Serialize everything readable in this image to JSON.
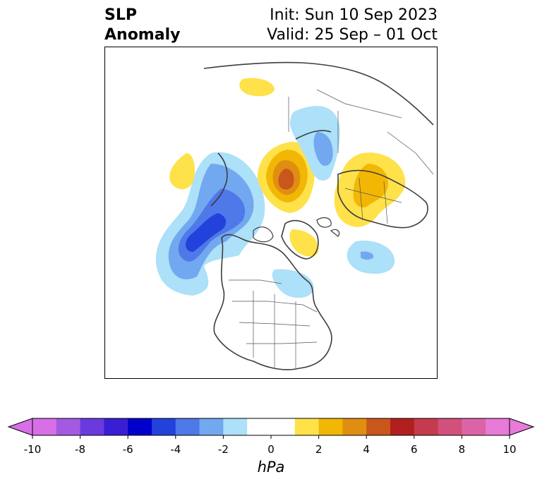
{
  "title": {
    "left_line1": "SLP",
    "left_line2": "Anomaly",
    "right_line1": "Init: Sun 10 Sep 2023",
    "right_line2": "Valid: 25 Sep – 01 Oct"
  },
  "colorbar": {
    "unit": "hPa",
    "min": -10,
    "max": 10,
    "ticks": [
      "-10",
      "-8",
      "-6",
      "-4",
      "-2",
      "0",
      "2",
      "4",
      "6",
      "8",
      "10"
    ],
    "under_color": "#d86fe6",
    "over_color": "#e87ad8",
    "bins": [
      {
        "lo": -10,
        "hi": -9,
        "color": "#d86fe6"
      },
      {
        "lo": -9,
        "hi": -8,
        "color": "#a35ae0"
      },
      {
        "lo": -8,
        "hi": -7,
        "color": "#6a3adf"
      },
      {
        "lo": -7,
        "hi": -6,
        "color": "#3a1ed3"
      },
      {
        "lo": -6,
        "hi": -5,
        "color": "#0000cd"
      },
      {
        "lo": -5,
        "hi": -4,
        "color": "#2342dc"
      },
      {
        "lo": -4,
        "hi": -3,
        "color": "#4f78e8"
      },
      {
        "lo": -3,
        "hi": -2,
        "color": "#72a8ef"
      },
      {
        "lo": -2,
        "hi": -1,
        "color": "#ade0f9"
      },
      {
        "lo": -1,
        "hi": 1,
        "color": "#ffffff"
      },
      {
        "lo": 1,
        "hi": 2,
        "color": "#ffe14a"
      },
      {
        "lo": 2,
        "hi": 3,
        "color": "#f2b705"
      },
      {
        "lo": 3,
        "hi": 4,
        "color": "#e08e12"
      },
      {
        "lo": 4,
        "hi": 5,
        "color": "#c9561b"
      },
      {
        "lo": 5,
        "hi": 6,
        "color": "#b21f1f"
      },
      {
        "lo": 6,
        "hi": 7,
        "color": "#c43a4e"
      },
      {
        "lo": 7,
        "hi": 8,
        "color": "#d1507c"
      },
      {
        "lo": 8,
        "hi": 9,
        "color": "#dc64a6"
      },
      {
        "lo": 9,
        "hi": 10,
        "color": "#e87ad8"
      }
    ]
  },
  "anomaly_features": [
    {
      "name": "north-pacific-low",
      "color_levels": [
        "#ade0f9",
        "#72a8ef",
        "#4f78e8",
        "#2342dc"
      ]
    },
    {
      "name": "siberia-high",
      "color_levels": [
        "#ffe14a",
        "#f2b705",
        "#e08e12",
        "#c9561b"
      ]
    },
    {
      "name": "europe-high",
      "color_levels": [
        "#ffe14a",
        "#f2b705"
      ]
    },
    {
      "name": "east-siberia-low",
      "color_levels": [
        "#ade0f9",
        "#72a8ef"
      ]
    },
    {
      "name": "north-atlantic-low",
      "color_levels": [
        "#ade0f9",
        "#72a8ef"
      ]
    }
  ]
}
